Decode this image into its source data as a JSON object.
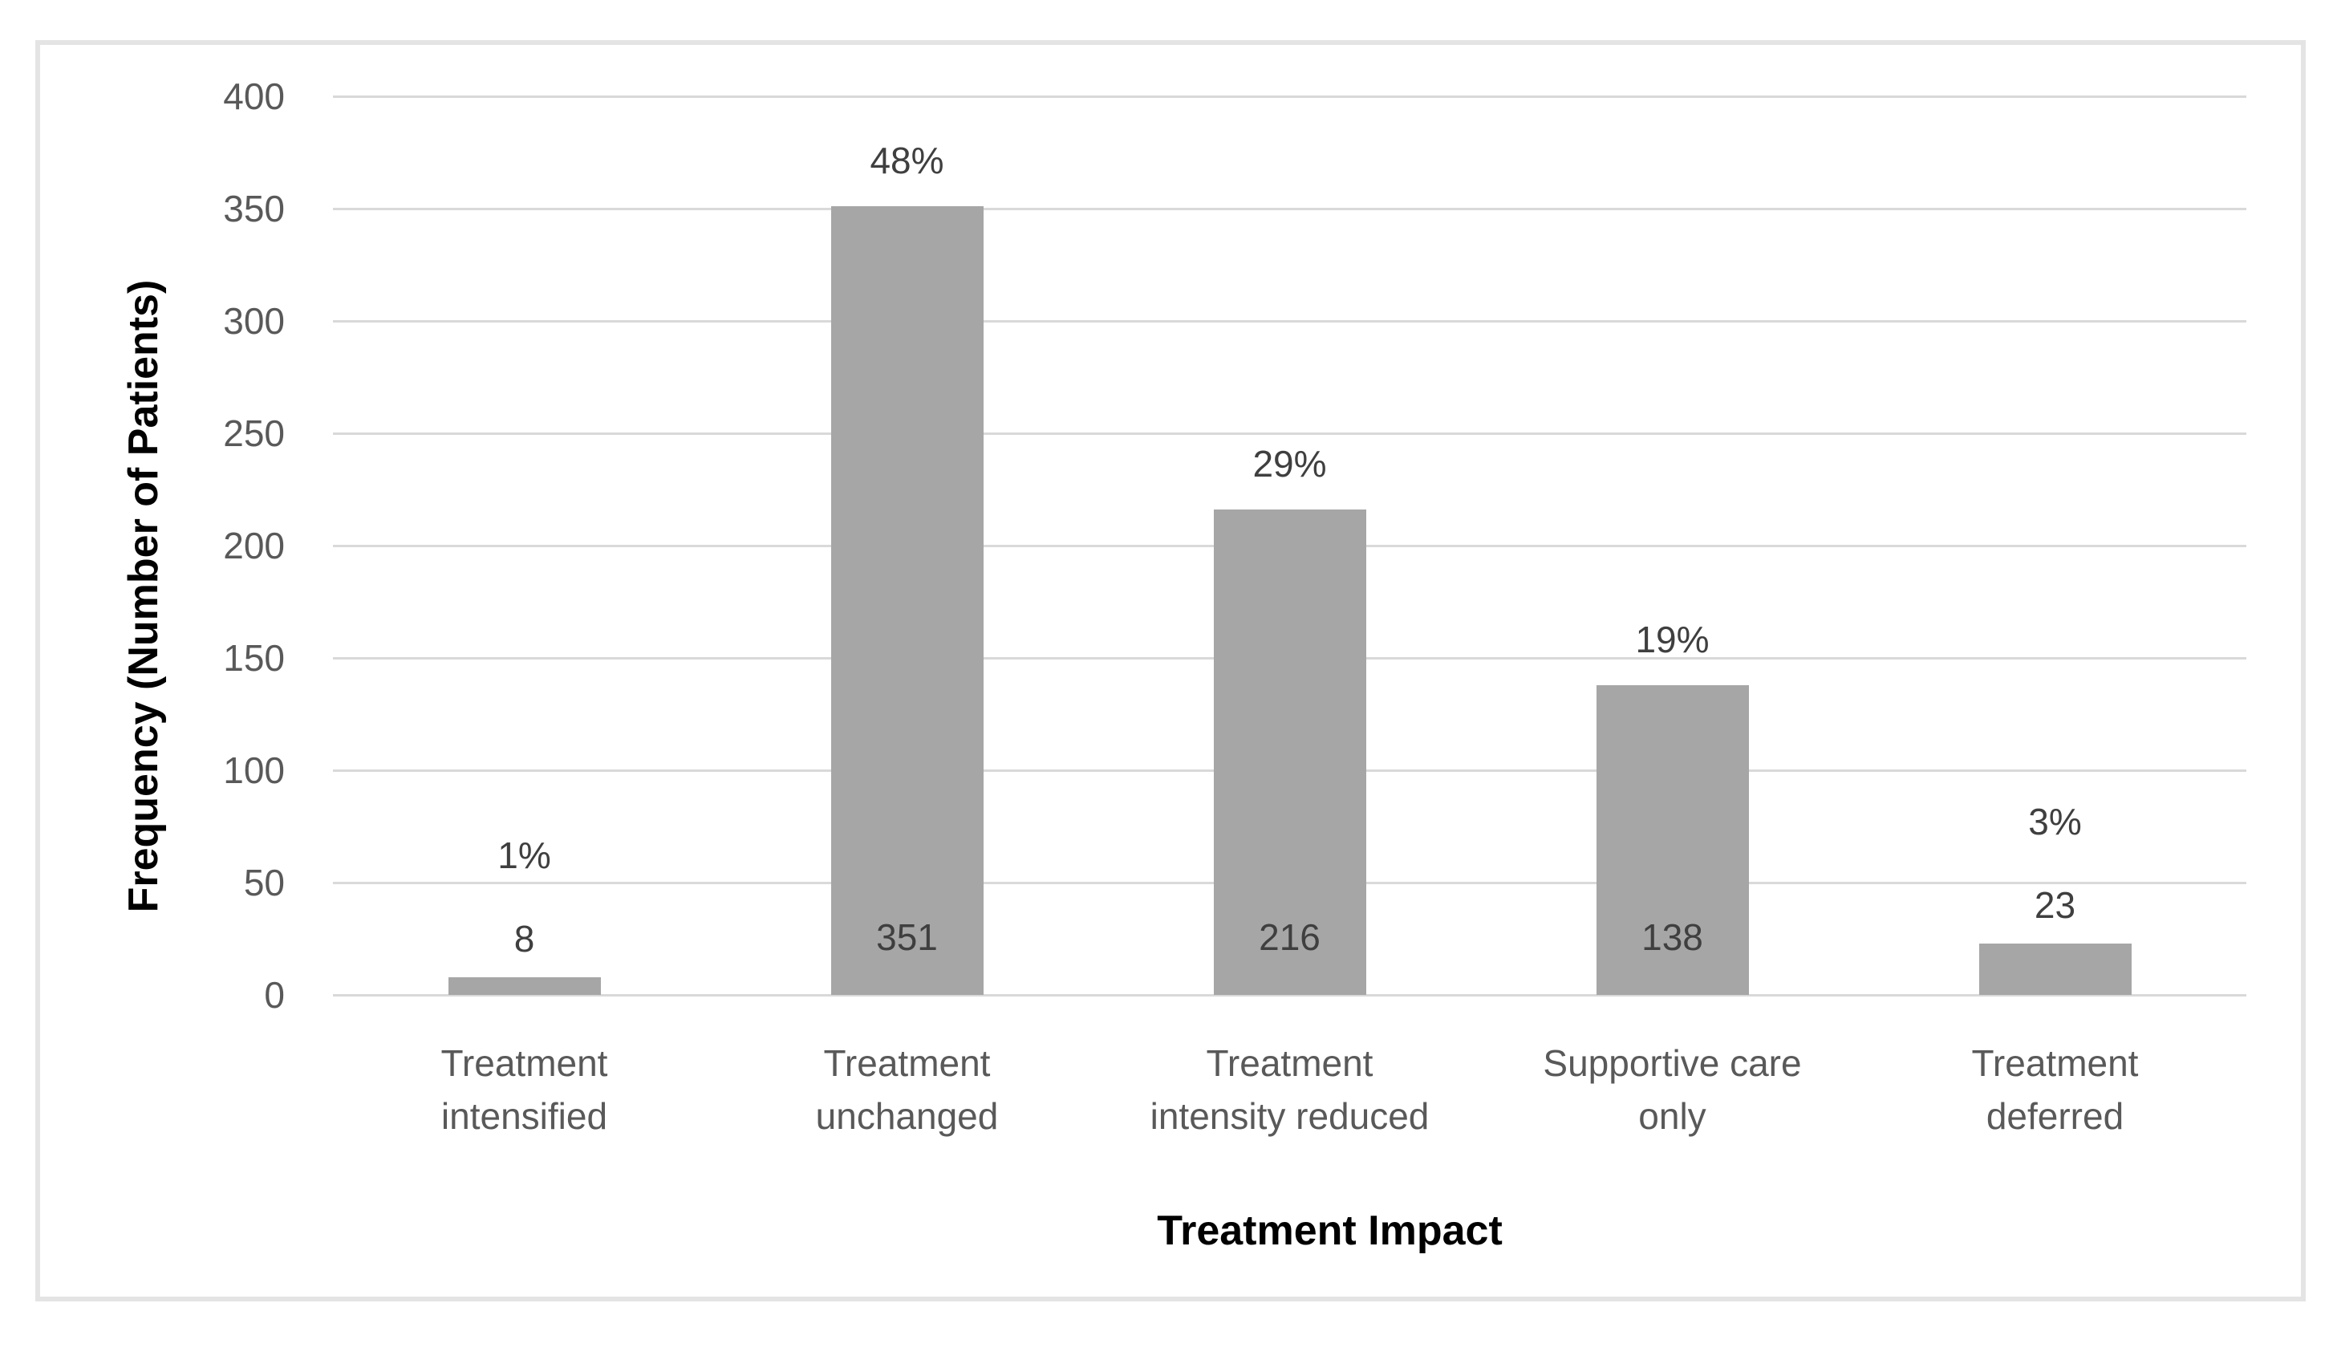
{
  "chart_data": {
    "type": "bar",
    "title": "",
    "xlabel": "Treatment Impact",
    "ylabel": "Frequency (Number of Patients)",
    "ylim": [
      0,
      400
    ],
    "ytick_step": 50,
    "yticks": [
      0,
      50,
      100,
      150,
      200,
      250,
      300,
      350,
      400
    ],
    "grid": true,
    "legend": false,
    "categories": [
      "Treatment intensified",
      "Treatment unchanged",
      "Treatment intensity reduced",
      "Supportive care only",
      "Treatment deferred"
    ],
    "category_lines": [
      [
        "Treatment",
        "intensified"
      ],
      [
        "Treatment",
        "unchanged"
      ],
      [
        "Treatment",
        "intensity reduced"
      ],
      [
        "Supportive care",
        "only"
      ],
      [
        "Treatment",
        "deferred"
      ]
    ],
    "series": [
      {
        "name": "Frequency (Number of Patients)",
        "values": [
          8,
          351,
          216,
          138,
          23
        ]
      }
    ],
    "values": [
      8,
      351,
      216,
      138,
      23
    ],
    "count_labels": [
      "8",
      "351",
      "216",
      "138",
      "23"
    ],
    "percent_labels": [
      "1%",
      "48%",
      "29%",
      "19%",
      "3%"
    ],
    "colors": {
      "bar": "#a6a6a6",
      "gridline": "#d9d9d9",
      "tick_text": "#595959",
      "category_text": "#595959",
      "data_label_text": "#3f3f3f",
      "axis_title_text": "#000000",
      "frame_border": "#e4e4e4",
      "background": "#ffffff"
    }
  }
}
